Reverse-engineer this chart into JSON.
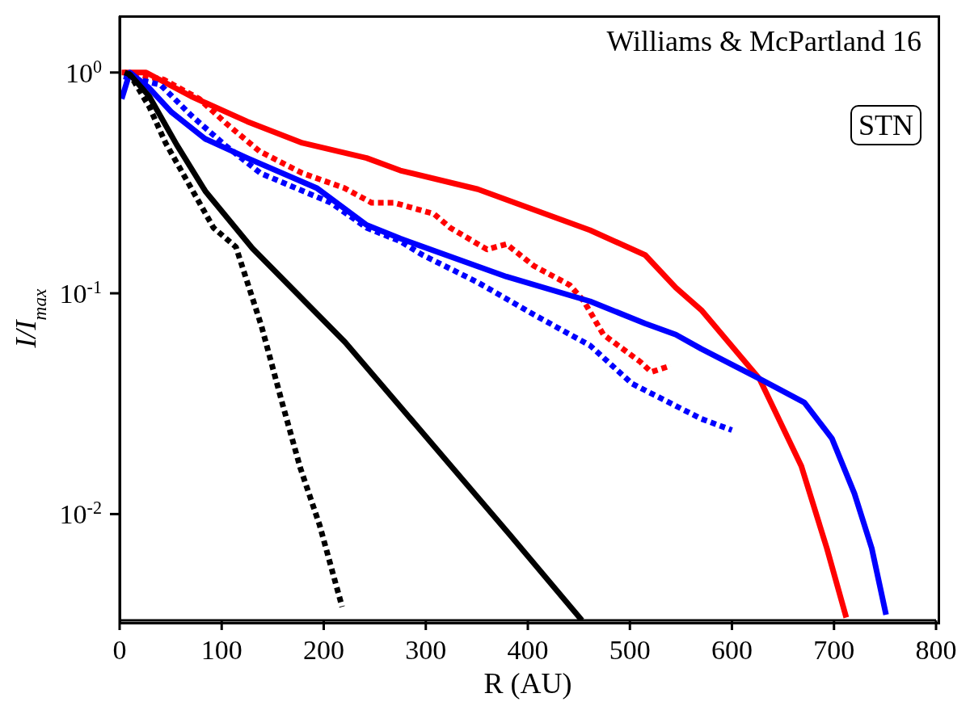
{
  "chart_data": {
    "type": "line",
    "xlabel": "R (AU)",
    "ylabel": "I/I$_{max}$",
    "annotations": [
      "Williams & McPartland 16",
      "STN"
    ],
    "log": "y",
    "xlim": [
      0,
      800
    ],
    "xticks": [
      0,
      100,
      200,
      300,
      400,
      500,
      600,
      700,
      800
    ],
    "ylim": [
      0.0033,
      1.8
    ],
    "yticks": [
      {
        "value": 0.01,
        "label": "10$^{-2}$"
      },
      {
        "value": 0.1,
        "label": "10$^{-1}$"
      },
      {
        "value": 1,
        "label": "10$^{0}$"
      }
    ],
    "series": [
      {
        "color": "#ff0000",
        "line_style": "solid",
        "x": [
          2,
          26,
          70,
          125,
          179,
          242,
          275,
          351,
          461,
          515,
          545,
          570,
          627,
          668,
          693,
          712
        ],
        "values": [
          1.0,
          1.0,
          0.78,
          0.6,
          0.48,
          0.41,
          0.36,
          0.296,
          0.193,
          0.149,
          0.106,
          0.084,
          0.041,
          0.0165,
          0.007,
          0.0034
        ]
      },
      {
        "color": "#ff0000",
        "line_style": "dashed",
        "x": [
          4,
          43,
          78,
          104,
          137,
          179,
          220,
          247,
          269,
          308,
          324,
          360,
          379,
          406,
          441,
          455,
          474,
          510,
          521,
          540
        ],
        "values": [
          1.0,
          0.93,
          0.76,
          0.59,
          0.44,
          0.35,
          0.3,
          0.257,
          0.257,
          0.229,
          0.198,
          0.158,
          0.167,
          0.133,
          0.109,
          0.092,
          0.065,
          0.049,
          0.044,
          0.047
        ]
      },
      {
        "color": "#0000ff",
        "line_style": "solid",
        "x": [
          2,
          10,
          29,
          51,
          84,
          125,
          193,
          242,
          275,
          379,
          461,
          515,
          545,
          570,
          627,
          671,
          698,
          720,
          737,
          751
        ],
        "values": [
          0.76,
          1.0,
          0.85,
          0.66,
          0.5,
          0.41,
          0.3,
          0.204,
          0.177,
          0.119,
          0.092,
          0.073,
          0.065,
          0.056,
          0.041,
          0.032,
          0.022,
          0.0124,
          0.007,
          0.0035
        ]
      },
      {
        "color": "#0000ff",
        "line_style": "dashed",
        "x": [
          4,
          40,
          70,
          103,
          138,
          207,
          242,
          275,
          297,
          351,
          406,
          461,
          502,
          570,
          600
        ],
        "values": [
          0.96,
          0.88,
          0.64,
          0.47,
          0.35,
          0.257,
          0.198,
          0.172,
          0.149,
          0.112,
          0.08,
          0.058,
          0.039,
          0.027,
          0.024
        ]
      },
      {
        "color": "#000000",
        "line_style": "solid",
        "x": [
          5,
          10,
          29,
          56,
          84,
          130,
          221,
          316,
          382,
          453
        ],
        "values": [
          1.0,
          0.98,
          0.78,
          0.47,
          0.29,
          0.16,
          0.06,
          0.0184,
          0.0081,
          0.0033
        ]
      },
      {
        "color": "#000000",
        "line_style": "dashed",
        "x": [
          8,
          13,
          29,
          45,
          70,
          92,
          114,
          139,
          160,
          177,
          196,
          218
        ],
        "values": [
          1.0,
          0.93,
          0.7,
          0.48,
          0.3,
          0.198,
          0.162,
          0.071,
          0.031,
          0.0162,
          0.0089,
          0.0038
        ]
      }
    ]
  }
}
